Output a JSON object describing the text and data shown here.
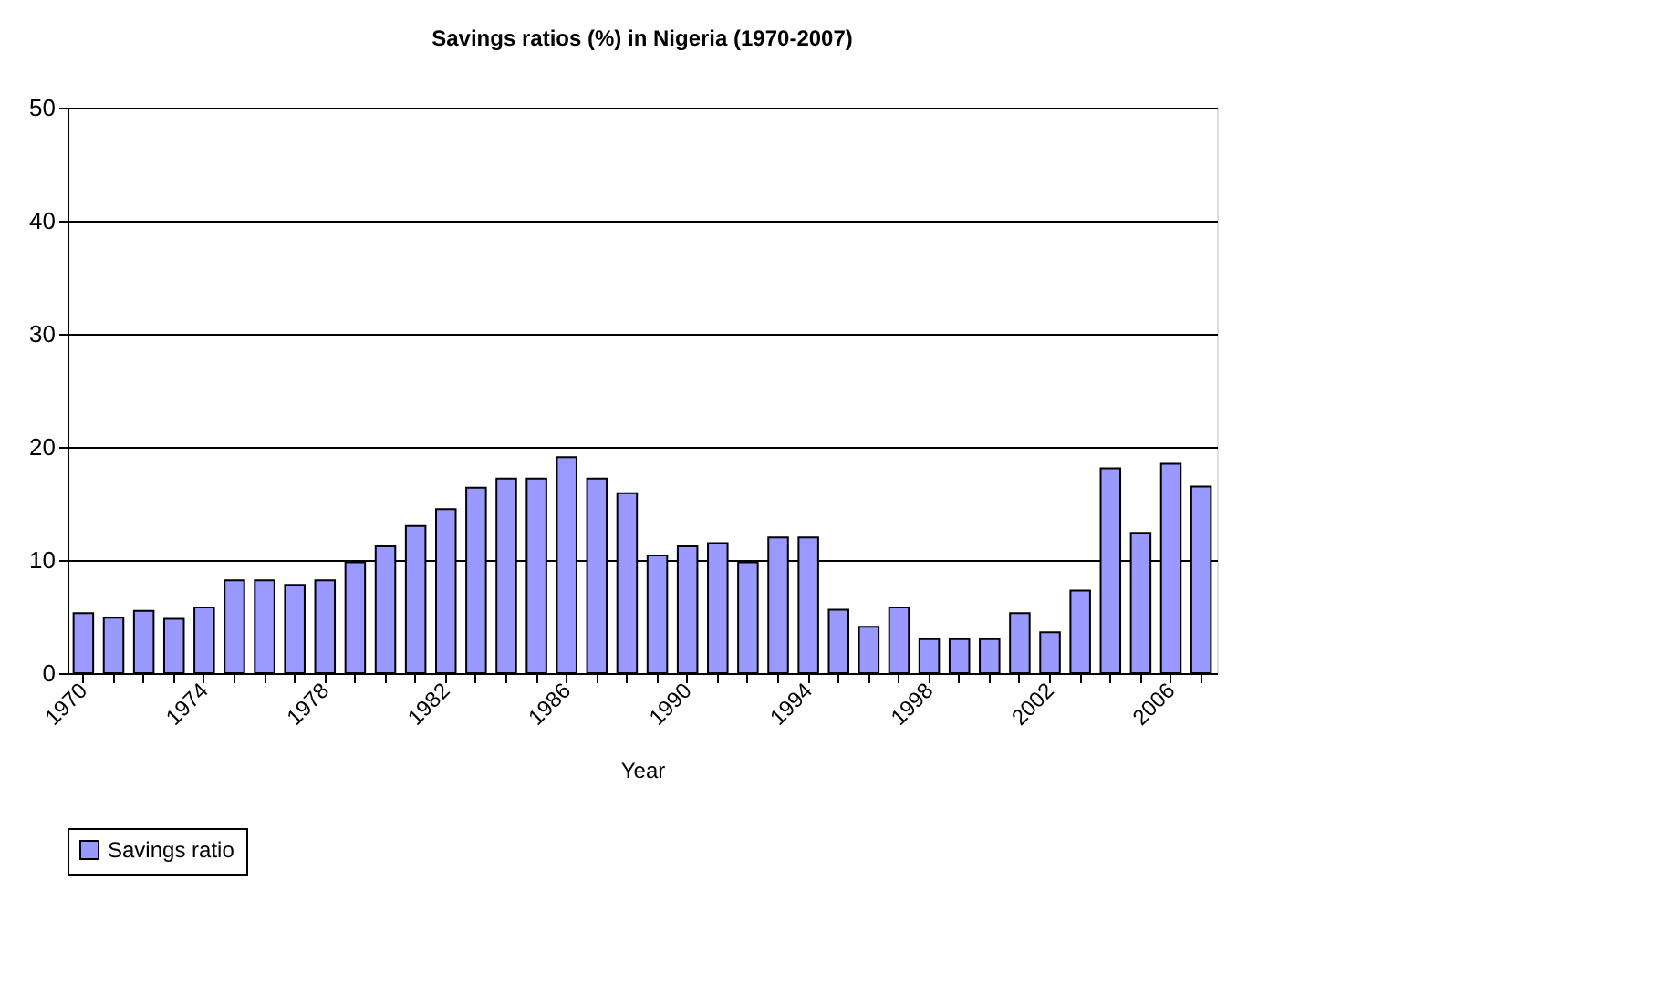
{
  "chart_data": {
    "type": "bar",
    "title": "Savings ratios (%) in Nigeria (1970-2007)",
    "xlabel": "Year",
    "categories": [
      "1970",
      null,
      null,
      null,
      "1974",
      null,
      null,
      null,
      "1978",
      null,
      null,
      null,
      "1982",
      null,
      null,
      null,
      "1986",
      null,
      null,
      null,
      "1990",
      null,
      null,
      null,
      "1994",
      null,
      null,
      null,
      "1998",
      null,
      null,
      null,
      "2002",
      null,
      null,
      null,
      "2006",
      null
    ],
    "series": [
      {
        "name": "Savings ratio",
        "color": "#9999ff",
        "values": [
          5.3,
          4.9,
          5.5,
          4.8,
          5.8,
          8.2,
          8.2,
          7.8,
          8.2,
          9.8,
          11.2,
          13.0,
          14.5,
          16.4,
          17.2,
          17.2,
          19.1,
          17.2,
          15.9,
          10.4,
          11.2,
          11.5,
          9.8,
          12.0,
          12.0,
          5.6,
          4.1,
          5.8,
          3.0,
          3.0,
          3.0,
          5.3,
          3.6,
          7.3,
          18.1,
          12.4,
          18.5,
          16.5
        ]
      }
    ],
    "ylim": [
      0,
      50
    ],
    "yticks": [
      0,
      10,
      20,
      30,
      40,
      50
    ],
    "grid": "y",
    "legend": "bottom"
  }
}
